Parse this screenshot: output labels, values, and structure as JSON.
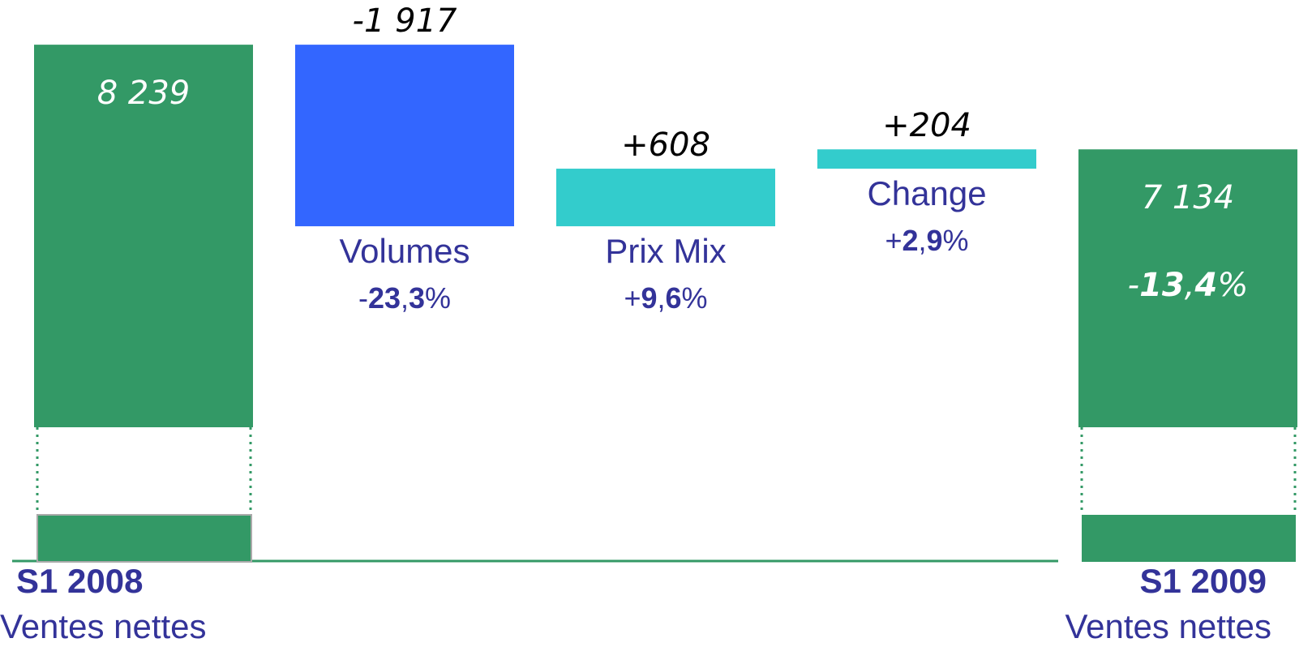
{
  "chart_data": {
    "type": "waterfall",
    "categories": [
      "S1 2008",
      "Volumes",
      "Prix Mix",
      "Change",
      "S1 2009"
    ],
    "sublabels": [
      "Ventes nettes",
      null,
      null,
      null,
      "Ventes nettes"
    ],
    "measures": [
      "total",
      "relative",
      "relative",
      "relative",
      "total"
    ],
    "values": [
      8239,
      -1917,
      608,
      204,
      7134
    ],
    "value_labels": [
      "8 239",
      "-1 917",
      "+608",
      "+204",
      "7 134"
    ],
    "pct_labels": [
      null,
      "-23,3%",
      "+9,6%",
      "+2,9%",
      "-13,4%"
    ],
    "colors": {
      "total": "#339966",
      "decrease": "#3366ff",
      "increase": "#33cccc"
    },
    "ylim": [
      4200,
      8300
    ],
    "axis_break": true
  }
}
